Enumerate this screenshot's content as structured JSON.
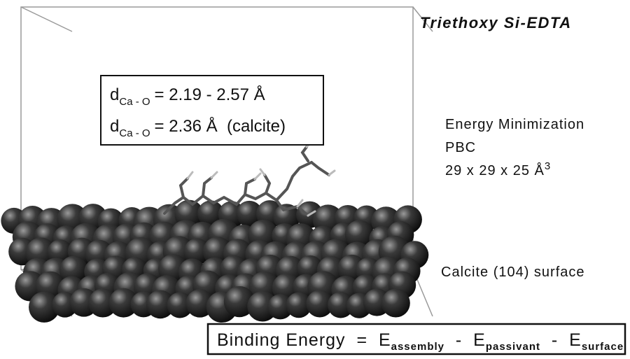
{
  "title": "Triethoxy Si-EDTA",
  "distance_box": {
    "lines": [
      {
        "symbol": "d",
        "subscript": "Ca - O",
        "text": "= 2.19 - 2.57 Å"
      },
      {
        "symbol": "d",
        "subscript": "Ca - O",
        "text": "= 2.36 Å  (calcite)"
      }
    ]
  },
  "conditions": {
    "method": "Energy Minimization",
    "boundary": "PBC",
    "cell": "29 x 29 x 25 Å",
    "cell_exponent": "3"
  },
  "surface_label": "Calcite (104) surface",
  "equation": {
    "lhs": "Binding Energy  =  E",
    "sub1": "assembly",
    "op2": "  -  E",
    "sub2": "passivant",
    "op3": "  -  E",
    "sub3": "surface"
  }
}
